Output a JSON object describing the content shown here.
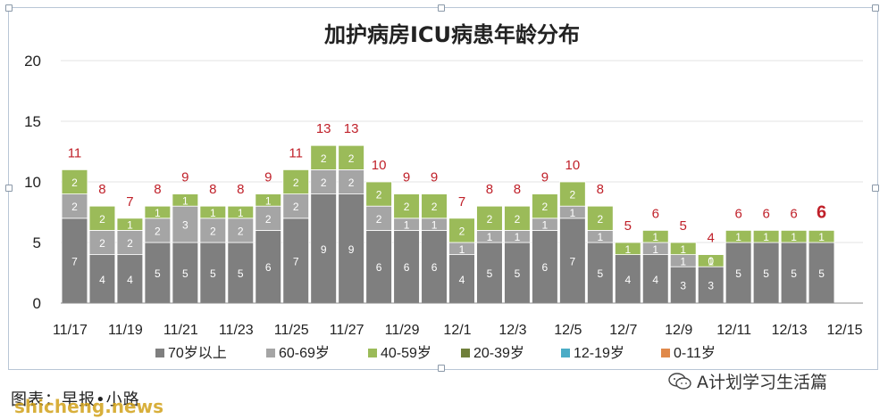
{
  "chart_data": {
    "type": "bar",
    "stacked": true,
    "title": "加护病房ICU病患年龄分布",
    "categories": [
      "11/17",
      "11/18",
      "11/19",
      "11/20",
      "11/21",
      "11/22",
      "11/23",
      "11/24",
      "11/25",
      "11/26",
      "11/27",
      "11/28",
      "11/29",
      "11/30",
      "12/1",
      "12/2",
      "12/3",
      "12/4",
      "12/5",
      "12/6",
      "12/7",
      "12/8",
      "12/9",
      "12/10",
      "12/11",
      "12/12",
      "12/13",
      "12/14",
      "12/15"
    ],
    "tick_labels": [
      "11/17",
      "11/19",
      "11/21",
      "11/23",
      "11/25",
      "11/27",
      "11/29",
      "12/1",
      "12/3",
      "12/5",
      "12/7",
      "12/9",
      "12/11",
      "12/13",
      "12/15"
    ],
    "totals": [
      "11",
      "8",
      "7",
      "8",
      "9",
      "8",
      "8",
      "9",
      "11",
      "13",
      "13",
      "10",
      "9",
      "9",
      "7",
      "8",
      "8",
      "9",
      "10",
      "8",
      "5",
      "6",
      "5",
      "4",
      "6",
      "6",
      "6",
      "6",
      ""
    ],
    "series": [
      {
        "name": "70岁以上",
        "color": "#7f7f7f",
        "values": [
          7,
          4,
          4,
          5,
          5,
          5,
          5,
          6,
          7,
          9,
          9,
          6,
          6,
          6,
          4,
          5,
          5,
          6,
          7,
          5,
          4,
          4,
          3,
          3,
          5,
          5,
          5,
          5,
          null
        ]
      },
      {
        "name": "60-69岁",
        "color": "#a5a5a5",
        "values": [
          2,
          2,
          2,
          2,
          3,
          2,
          2,
          2,
          2,
          2,
          2,
          2,
          1,
          1,
          1,
          1,
          1,
          1,
          1,
          1,
          0,
          1,
          1,
          0,
          0,
          0,
          0,
          0,
          null
        ]
      },
      {
        "name": "40-59岁",
        "color": "#9bbb59",
        "values": [
          2,
          2,
          1,
          1,
          1,
          1,
          1,
          1,
          2,
          2,
          2,
          2,
          2,
          2,
          2,
          2,
          2,
          2,
          2,
          2,
          1,
          1,
          1,
          1,
          1,
          1,
          1,
          1,
          null
        ]
      },
      {
        "name": "20-39岁",
        "color": "#6f7f3a",
        "values": [
          0,
          0,
          0,
          0,
          0,
          0,
          0,
          0,
          0,
          0,
          0,
          0,
          0,
          0,
          0,
          0,
          0,
          0,
          0,
          0,
          0,
          0,
          0,
          0,
          0,
          0,
          0,
          0,
          null
        ]
      },
      {
        "name": "12-19岁",
        "color": "#4bacc6",
        "values": [
          0,
          0,
          0,
          0,
          0,
          0,
          0,
          0,
          0,
          0,
          0,
          0,
          0,
          0,
          0,
          0,
          0,
          0,
          0,
          0,
          0,
          0,
          0,
          0,
          0,
          0,
          0,
          0,
          null
        ]
      },
      {
        "name": "0-11岁",
        "color": "#e0894a",
        "values": [
          0,
          0,
          0,
          0,
          0,
          0,
          0,
          0,
          0,
          0,
          0,
          0,
          0,
          0,
          0,
          0,
          0,
          0,
          0,
          0,
          0,
          0,
          0,
          0,
          0,
          0,
          0,
          0,
          null
        ]
      }
    ],
    "ylim": [
      0,
      20
    ],
    "yticks": [
      "0",
      "5",
      "10",
      "15",
      "20"
    ],
    "grid": true,
    "legend": "bottom",
    "total_color": "#c0212a",
    "last_total_emphasis": true
  },
  "footer": {
    "credit": "图表：早报•小路",
    "watermark": "shicheng.news",
    "wechat_name": "A计划学习生活篇"
  }
}
